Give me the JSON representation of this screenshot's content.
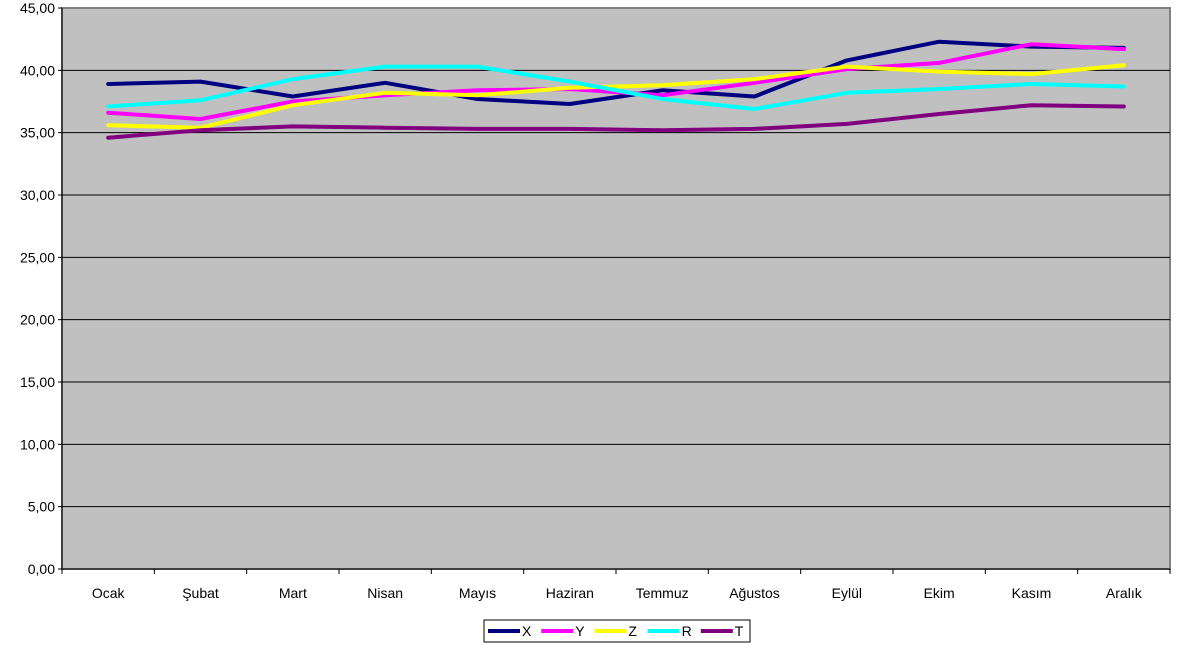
{
  "chart_data": {
    "type": "line",
    "categories": [
      "Ocak",
      "Şubat",
      "Mart",
      "Nisan",
      "Mayıs",
      "Haziran",
      "Temmuz",
      "Ağustos",
      "Eylül",
      "Ekim",
      "Kasım",
      "Aralık"
    ],
    "ylim": [
      0,
      45
    ],
    "yticks": [
      0,
      5,
      10,
      15,
      20,
      25,
      30,
      35,
      40,
      45
    ],
    "ytick_labels": [
      "0,00",
      "5,00",
      "10,00",
      "15,00",
      "20,00",
      "25,00",
      "30,00",
      "35,00",
      "40,00",
      "45,00"
    ],
    "grid": true,
    "plot_background": "#c0c0c0",
    "plot_border": "#808080",
    "legend_position": "bottom",
    "series": [
      {
        "name": "X",
        "color": "#000080",
        "values": [
          38.9,
          39.1,
          37.9,
          39.0,
          37.7,
          37.3,
          38.4,
          37.9,
          40.8,
          42.3,
          41.9,
          41.8
        ]
      },
      {
        "name": "Y",
        "color": "#ff00ff",
        "values": [
          36.6,
          36.1,
          37.5,
          38.0,
          38.4,
          38.5,
          38.0,
          39.0,
          40.1,
          40.6,
          42.1,
          41.7
        ]
      },
      {
        "name": "Z",
        "color": "#ffff00",
        "values": [
          35.6,
          35.4,
          37.2,
          38.2,
          38.0,
          38.6,
          38.8,
          39.3,
          40.3,
          39.9,
          39.7,
          40.4
        ]
      },
      {
        "name": "R",
        "color": "#00ffff",
        "values": [
          37.1,
          37.6,
          39.3,
          40.3,
          40.3,
          39.1,
          37.7,
          36.9,
          38.2,
          38.5,
          38.9,
          38.7
        ]
      },
      {
        "name": "T",
        "color": "#800080",
        "values": [
          34.6,
          35.2,
          35.5,
          35.4,
          35.3,
          35.3,
          35.2,
          35.3,
          35.7,
          36.5,
          37.2,
          37.1
        ]
      }
    ]
  }
}
